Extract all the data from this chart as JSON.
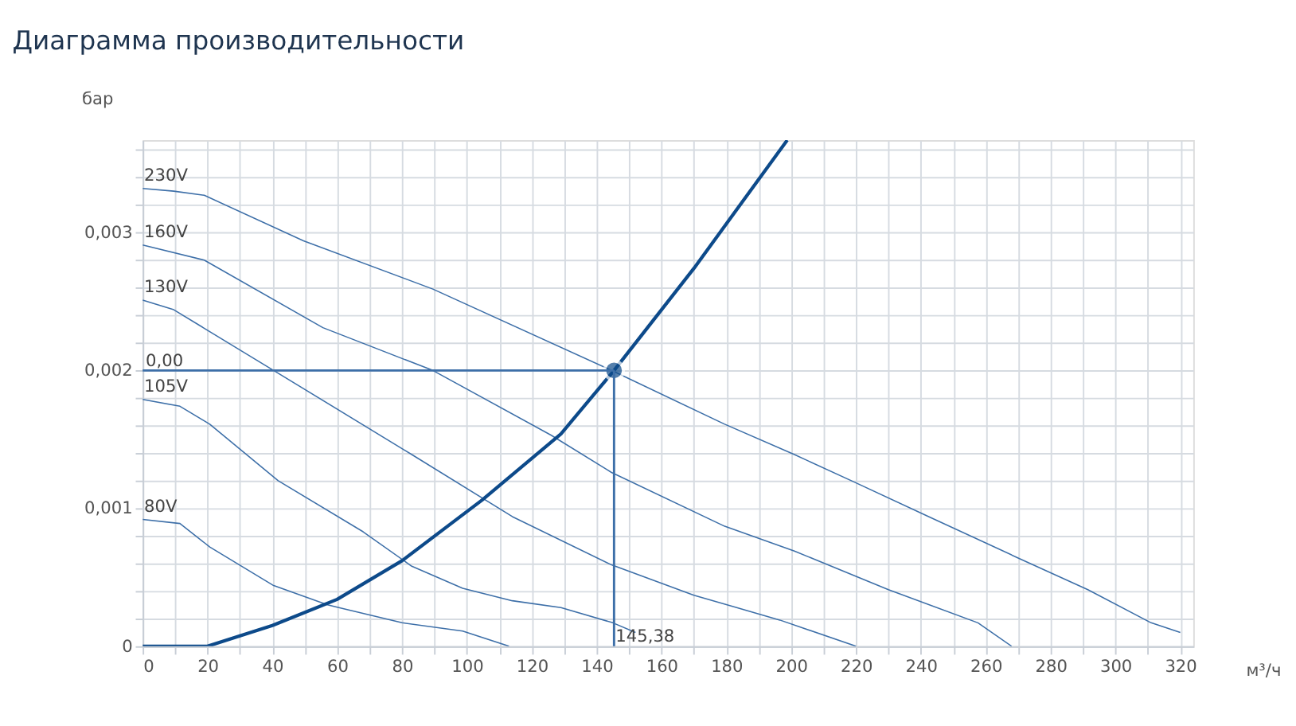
{
  "chart_data": {
    "type": "line",
    "title": "Диаграмма производительности",
    "xlabel": "м³/ч",
    "ylabel": "бар",
    "xlim": [
      0,
      324
    ],
    "ylim": [
      0,
      0.00367
    ],
    "xticks": [
      0,
      {
        "value": 10,
        "label": null
      },
      20,
      {
        "value": 30,
        "label": null
      },
      40,
      {
        "value": 50,
        "label": null
      },
      60,
      {
        "value": 70,
        "label": null
      },
      80,
      {
        "value": 90,
        "label": null
      },
      100,
      {
        "value": 110,
        "label": null
      },
      120,
      {
        "value": 130,
        "label": null
      },
      140,
      {
        "value": 150,
        "label": null
      },
      160,
      {
        "value": 170,
        "label": null
      },
      180,
      {
        "value": 190,
        "label": null
      },
      200,
      {
        "value": 210,
        "label": null
      },
      220,
      {
        "value": 230,
        "label": null
      },
      240,
      {
        "value": 250,
        "label": null
      },
      260,
      {
        "value": 270,
        "label": null
      },
      280,
      {
        "value": 290,
        "label": null
      },
      300,
      {
        "value": 310,
        "label": null
      },
      320
    ],
    "yticks": [
      0,
      {
        "value": 0.0002,
        "label": null
      },
      {
        "value": 0.0004,
        "label": null
      },
      {
        "value": 0.0006,
        "label": null
      },
      {
        "value": 0.0008,
        "label": null
      },
      {
        "value": 0.001,
        "label": "0,001"
      },
      {
        "value": 0.0012,
        "label": null
      },
      {
        "value": 0.0014,
        "label": null
      },
      {
        "value": 0.0016,
        "label": null
      },
      {
        "value": 0.0018,
        "label": null
      },
      {
        "value": 0.002,
        "label": "0,002"
      },
      {
        "value": 0.0022,
        "label": null
      },
      {
        "value": 0.0024,
        "label": null
      },
      {
        "value": 0.0026,
        "label": null
      },
      {
        "value": 0.0028,
        "label": null
      },
      {
        "value": 0.003,
        "label": "0,003"
      },
      {
        "value": 0.0032,
        "label": null
      },
      {
        "value": 0.0034,
        "label": null
      },
      {
        "value": 0.0036,
        "label": null
      }
    ],
    "grid": true,
    "series": [
      {
        "name": "230V",
        "color": "#3d6fa8",
        "x": [
          0,
          9.6,
          19,
          49.6,
          89.5,
          144.6,
          179.5,
          201,
          219.5,
          242.4,
          270,
          291.5,
          311,
          320
        ],
        "values": [
          0.00332,
          0.0033,
          0.00327,
          0.00294,
          0.00259,
          0.002,
          0.00161,
          0.00139,
          0.00119,
          0.00094,
          0.00064,
          0.00041,
          0.00017,
          0.0001
        ]
      },
      {
        "name": "160V",
        "color": "#3d6fa8",
        "x": [
          0,
          19,
          55.6,
          89.5,
          126,
          144.6,
          179.5,
          201,
          230,
          257.6,
          268
        ],
        "values": [
          0.00291,
          0.0028,
          0.00231,
          0.002,
          0.00153,
          0.00126,
          0.00087,
          0.00069,
          0.00041,
          0.00017,
          0
        ]
      },
      {
        "name": "130V",
        "color": "#3d6fa8",
        "x": [
          0,
          9.6,
          40.4,
          83,
          114,
          144.6,
          170,
          196.5,
          220
        ],
        "values": [
          0.00251,
          0.00244,
          0.002,
          0.00139,
          0.00094,
          0.00059,
          0.00037,
          0.00019,
          0
        ]
      },
      {
        "name": "105V",
        "color": "#3d6fa8",
        "x": [
          0,
          11.5,
          20.7,
          41.8,
          68,
          83,
          98.7,
          114,
          129,
          145,
          152
        ],
        "values": [
          0.00179,
          0.00174,
          0.00161,
          0.0012,
          0.00083,
          0.00058,
          0.00042,
          0.00033,
          0.00028,
          0.00017,
          0.0001
        ]
      },
      {
        "name": "80V",
        "color": "#3d6fa8",
        "x": [
          0,
          11.5,
          20.7,
          40.4,
          57,
          80,
          98.7,
          113
        ],
        "values": [
          0.00092,
          0.00089,
          0.00072,
          0.00044,
          0.0003,
          0.00017,
          0.00011,
          0
        ]
      },
      {
        "color": "#0d4a8a",
        "x": [
          0,
          20,
          40,
          60,
          80,
          104.7,
          129,
          145.38,
          170,
          198.8
        ],
        "values": [
          0,
          0,
          0.00015,
          0.00034,
          0.00062,
          0.00106,
          0.00154,
          0.002,
          0.00274,
          0.00367
        ]
      },
      {
        "type": "scatter",
        "marker": "circle",
        "color": "#0d4a8a",
        "x": [
          145.38
        ],
        "values": [
          0.002
        ]
      }
    ],
    "ref_lines": [
      {
        "axis": "y",
        "value": 0.002,
        "label": "0,00",
        "color": "#3d6fa8"
      },
      {
        "axis": "x",
        "value": 145.38,
        "label": "145,38",
        "color": "#3d6fa8"
      }
    ]
  }
}
